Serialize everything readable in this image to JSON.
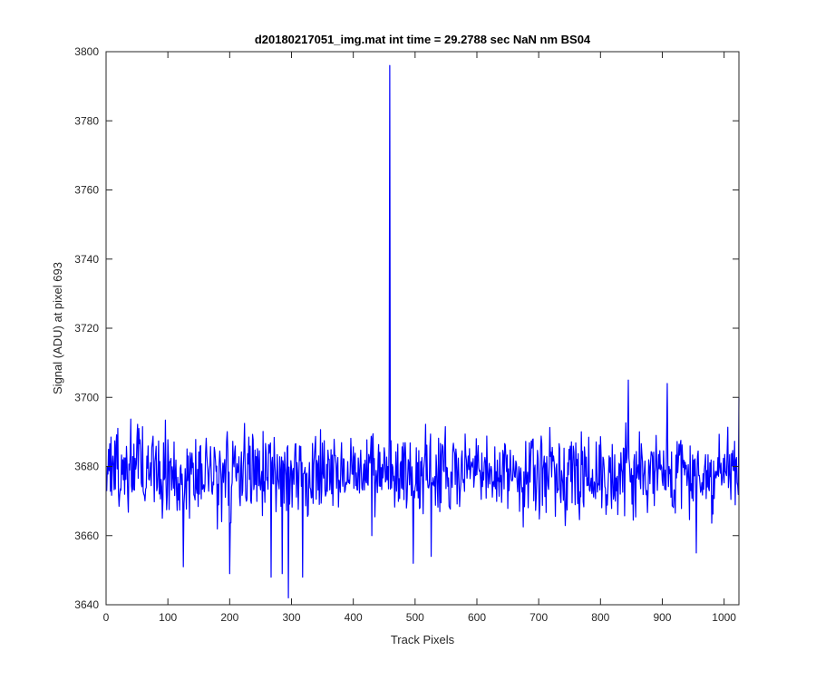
{
  "chart_data": {
    "type": "line",
    "title": "d20180217051_img.mat int time = 29.2788 sec  NaN nm BS04",
    "xlabel": "Track Pixels",
    "ylabel": "Signal (ADU) at pixel 693",
    "xlim": [
      0,
      1024
    ],
    "ylim": [
      3640,
      3800
    ],
    "xticks": [
      0,
      100,
      200,
      300,
      400,
      500,
      600,
      700,
      800,
      900,
      1000
    ],
    "yticks": [
      3640,
      3660,
      3680,
      3700,
      3720,
      3740,
      3760,
      3780,
      3800
    ],
    "xtick_labels": [
      "0",
      "100",
      "200",
      "300",
      "400",
      "500",
      "600",
      "700",
      "800",
      "900",
      "1000"
    ],
    "ytick_labels": [
      "3640",
      "3660",
      "3680",
      "3700",
      "3720",
      "3740",
      "3760",
      "3780",
      "3800"
    ],
    "grid": false,
    "line_color": "#0000ff",
    "series": [
      {
        "noise_center": 3678,
        "noise_amplitude": 8,
        "n_points": 1024,
        "seed": 693,
        "peaks": [
          {
            "x": 125,
            "y": 3651
          },
          {
            "x": 200,
            "y": 3649
          },
          {
            "x": 267,
            "y": 3648
          },
          {
            "x": 285,
            "y": 3649
          },
          {
            "x": 295,
            "y": 3642
          },
          {
            "x": 318,
            "y": 3648
          },
          {
            "x": 430,
            "y": 3660
          },
          {
            "x": 459,
            "y": 3796
          },
          {
            "x": 497,
            "y": 3652
          },
          {
            "x": 526,
            "y": 3654
          },
          {
            "x": 845,
            "y": 3705
          },
          {
            "x": 908,
            "y": 3704
          },
          {
            "x": 955,
            "y": 3655
          },
          {
            "x": 1024,
            "y": 3700
          }
        ]
      }
    ]
  }
}
